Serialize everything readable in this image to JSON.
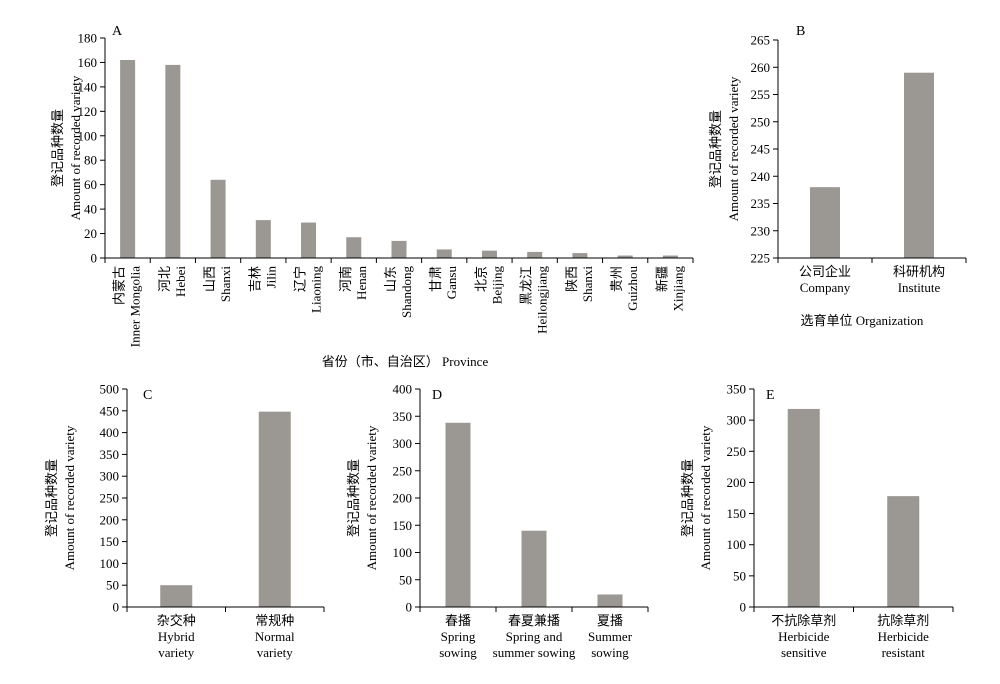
{
  "chart_data": [
    {
      "panel": "A",
      "type": "bar",
      "ylabel": [
        "登记品种数量",
        "Amount of recorded variety"
      ],
      "xlabel": "省份（市、自治区） Province",
      "ylim": [
        0,
        180
      ],
      "yticks": [
        0,
        20,
        40,
        60,
        80,
        100,
        120,
        140,
        160,
        180
      ],
      "categories": [
        [
          "内蒙古",
          "Inner Mongolia"
        ],
        [
          "河北",
          "Hebei"
        ],
        [
          "山西",
          "Shanxi"
        ],
        [
          "吉林",
          "Jilin"
        ],
        [
          "辽宁",
          "Liaoning"
        ],
        [
          "河南",
          "Henan"
        ],
        [
          "山东",
          "Shandong"
        ],
        [
          "甘肃",
          "Gansu"
        ],
        [
          "北京",
          "Beijing"
        ],
        [
          "黑龙江",
          "Heilongjiang"
        ],
        [
          "陕西",
          "Shanxi"
        ],
        [
          "贵州",
          "Guizhou"
        ],
        [
          "新疆",
          "Xinjiang"
        ]
      ],
      "values": [
        162,
        158,
        64,
        31,
        29,
        17,
        14,
        7,
        6,
        5,
        4,
        2,
        2
      ]
    },
    {
      "panel": "B",
      "type": "bar",
      "ylabel": [
        "登记品种数量",
        "Amount of recorded variety"
      ],
      "xlabel": "选育单位 Organization",
      "ylim": [
        225,
        265
      ],
      "yticks": [
        225,
        230,
        235,
        240,
        245,
        250,
        255,
        260,
        265
      ],
      "categories": [
        [
          "公司企业",
          "Company"
        ],
        [
          "科研机构",
          "Institute"
        ]
      ],
      "values": [
        238,
        259
      ]
    },
    {
      "panel": "C",
      "type": "bar",
      "ylabel": [
        "登记品种数量",
        "Amount of recorded variety"
      ],
      "xlabel": "",
      "ylim": [
        0,
        500
      ],
      "yticks": [
        0,
        50,
        100,
        150,
        200,
        250,
        300,
        350,
        400,
        450,
        500
      ],
      "categories": [
        [
          "杂交种",
          "Hybrid",
          "variety"
        ],
        [
          "常规种",
          "Normal",
          "variety"
        ]
      ],
      "values": [
        50,
        448
      ]
    },
    {
      "panel": "D",
      "type": "bar",
      "ylabel": [
        "登记品种数量",
        "Amount of recorded variety"
      ],
      "xlabel": "",
      "ylim": [
        0,
        400
      ],
      "yticks": [
        0,
        50,
        100,
        150,
        200,
        250,
        300,
        350,
        400
      ],
      "categories": [
        [
          "春播",
          "Spring",
          "sowing"
        ],
        [
          "春夏兼播",
          "Spring and",
          "summer sowing"
        ],
        [
          "夏播",
          "Summer",
          "sowing"
        ]
      ],
      "values": [
        338,
        140,
        23
      ]
    },
    {
      "panel": "E",
      "type": "bar",
      "ylabel": [
        "登记品种数量",
        "Amount of recorded variety"
      ],
      "xlabel": "",
      "ylim": [
        0,
        350
      ],
      "yticks": [
        0,
        50,
        100,
        150,
        200,
        250,
        300,
        350
      ],
      "categories": [
        [
          "不抗除草剂",
          "Herbicide",
          "sensitive"
        ],
        [
          "抗除草剂",
          "Herbicide",
          "resistant"
        ]
      ],
      "values": [
        318,
        178
      ]
    }
  ]
}
